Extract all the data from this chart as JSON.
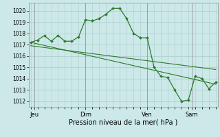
{
  "bg_color": "#cce8e8",
  "grid_color": "#aacccc",
  "line_color": "#2a7a2a",
  "ylabel_ticks": [
    1012,
    1013,
    1014,
    1015,
    1016,
    1017,
    1018,
    1019,
    1020
  ],
  "ylim": [
    1011.5,
    1020.7
  ],
  "xlabel": "Pression niveau de la mer( hPa )",
  "day_labels": [
    "Jeu",
    "Dim",
    "Ven",
    "Sam"
  ],
  "day_positions": [
    0.5,
    8,
    17,
    23.5
  ],
  "vline_positions": [
    0.5,
    8,
    17,
    23.5
  ],
  "series1_x": [
    0,
    1,
    2,
    3,
    4,
    5,
    6,
    7,
    8,
    9,
    10,
    11,
    12,
    13,
    14,
    15,
    16,
    17,
    18,
    19,
    20,
    21,
    22,
    23,
    24,
    25,
    26,
    27
  ],
  "series1_y": [
    1017.2,
    1017.4,
    1017.8,
    1017.3,
    1017.8,
    1017.3,
    1017.3,
    1017.7,
    1019.2,
    1019.1,
    1019.3,
    1019.7,
    1020.2,
    1020.2,
    1019.3,
    1018.0,
    1017.6,
    1017.6,
    1015.0,
    1014.2,
    1014.1,
    1013.0,
    1012.0,
    1012.1,
    1014.2,
    1014.0,
    1013.1,
    1013.7
  ],
  "series2_x": [
    0,
    27
  ],
  "series2_y": [
    1017.2,
    1013.5
  ],
  "series3_x": [
    0,
    27
  ],
  "series3_y": [
    1016.9,
    1014.8
  ],
  "xlim": [
    -0.3,
    27.3
  ]
}
